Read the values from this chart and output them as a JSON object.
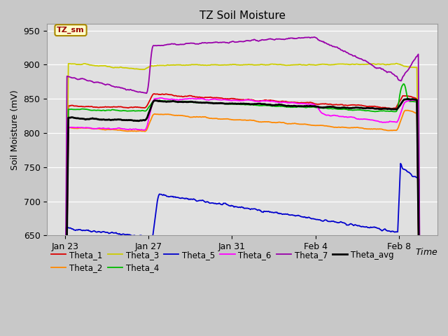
{
  "title": "TZ Soil Moisture",
  "ylabel": "Soil Moisture (mV)",
  "ylim": [
    650,
    960
  ],
  "yticks": [
    650,
    700,
    750,
    800,
    850,
    900,
    950
  ],
  "xtick_labels": [
    "Jan 23",
    "Jan 27",
    "Jan 31",
    "Feb 4",
    "Feb 8"
  ],
  "xtick_pos": [
    0,
    4,
    8,
    12,
    16
  ],
  "fig_bg_color": "#c8c8c8",
  "plot_bg_color": "#e0e0e0",
  "legend_label": "TZ_sm",
  "figsize": [
    6.4,
    4.8
  ],
  "dpi": 100,
  "series": {
    "Theta_1": {
      "color": "#dd0000",
      "lw": 1.3
    },
    "Theta_2": {
      "color": "#ff8800",
      "lw": 1.3
    },
    "Theta_3": {
      "color": "#cccc00",
      "lw": 1.3
    },
    "Theta_4": {
      "color": "#00bb00",
      "lw": 1.3
    },
    "Theta_5": {
      "color": "#0000cc",
      "lw": 1.3
    },
    "Theta_6": {
      "color": "#ff00ff",
      "lw": 1.3
    },
    "Theta_7": {
      "color": "#9900aa",
      "lw": 1.3
    },
    "Theta_avg": {
      "color": "#000000",
      "lw": 2.0
    }
  },
  "legend_order_row1": [
    "Theta_1",
    "Theta_2",
    "Theta_3",
    "Theta_4",
    "Theta_5",
    "Theta_6"
  ],
  "legend_order_row2": [
    "Theta_7",
    "Theta_avg"
  ]
}
